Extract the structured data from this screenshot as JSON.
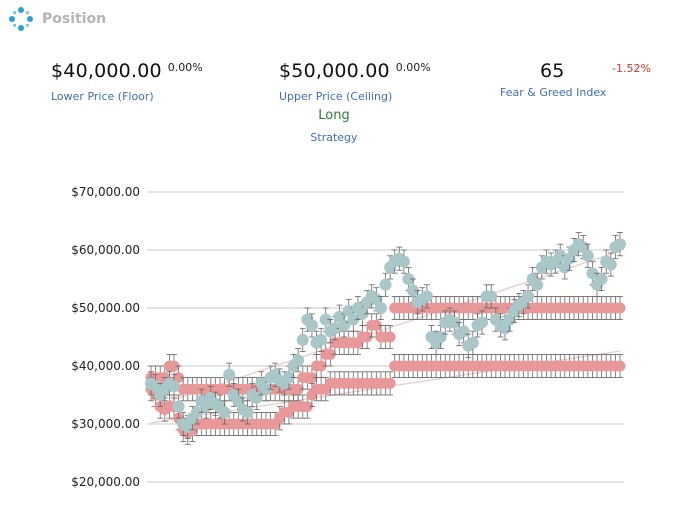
{
  "header": {
    "title": "Position",
    "icon": "dots-ring-icon"
  },
  "stats": {
    "floor": {
      "value": "$40,000.00",
      "change": "0.00%",
      "label": "Lower Price (Floor)"
    },
    "ceiling": {
      "value": "$50,000.00",
      "change": "0.00%",
      "label": "Upper Price (Ceiling)"
    },
    "fear_greed": {
      "value": "65",
      "change": "-1.52%",
      "label": "Fear & Greed Index"
    }
  },
  "strategy": {
    "value": "Long",
    "label": "Strategy"
  },
  "colors": {
    "price": "#a9c6c8",
    "band": "#e89898",
    "error": "#666666",
    "trend": "#e9c9c9",
    "grid": "#cccccc",
    "positive": "#2e7d32",
    "negative": "#d0342c",
    "link": "#3f6fb3"
  },
  "chart_data": {
    "type": "scatter",
    "title": "",
    "xlabel": "",
    "ylabel": "",
    "ylim": [
      20000,
      70000
    ],
    "y_ticks": [
      "$70,000.00",
      "$60,000.00",
      "$50,000.00",
      "$40,000.00",
      "$30,000.00",
      "$20,000.00"
    ],
    "y_tick_values": [
      70000,
      60000,
      50000,
      40000,
      30000,
      20000
    ],
    "grid": true,
    "error_bar": 2000,
    "series": [
      {
        "role": "upper_band",
        "values": [
          38000,
          38000,
          38000,
          38000,
          40000,
          40000,
          38000,
          36000,
          36000,
          36000,
          36000,
          36000,
          36000,
          36000,
          36000,
          36000,
          36000,
          36000,
          36000,
          36000,
          36000,
          36000,
          36000,
          36000,
          36000,
          36000,
          36000,
          36000,
          36000,
          36000,
          36000,
          36000,
          36000,
          38000,
          38000,
          38000,
          40000,
          40000,
          42000,
          42000,
          44000,
          44000,
          44000,
          44000,
          44000,
          44000,
          45000,
          45000,
          47000,
          47000,
          45000,
          45000,
          45000,
          50000,
          50000,
          50000,
          50000,
          50000,
          50000,
          50000,
          50000,
          50000,
          50000,
          50000,
          50000,
          50000,
          50000,
          50000,
          50000,
          50000,
          50000,
          50000,
          50000,
          50000,
          50000,
          50000,
          50000,
          50000,
          50000,
          50000,
          50000,
          50000,
          50000,
          50000,
          50000,
          50000,
          50000,
          50000,
          50000,
          50000,
          50000,
          50000,
          50000,
          50000,
          50000,
          50000,
          50000,
          50000,
          50000,
          50000,
          50000,
          50000,
          50000
        ]
      },
      {
        "role": "lower_band",
        "values": [
          36000,
          35000,
          33000,
          32500,
          33000,
          33000,
          31000,
          29000,
          28500,
          29000,
          30000,
          30000,
          30000,
          30000,
          30000,
          30000,
          30000,
          30000,
          30000,
          30000,
          30000,
          30000,
          30000,
          30000,
          30000,
          30000,
          30000,
          30000,
          31000,
          32000,
          32000,
          33000,
          33000,
          33000,
          33000,
          35000,
          36000,
          36000,
          36000,
          37000,
          37000,
          37000,
          37000,
          37000,
          37000,
          37000,
          37000,
          37000,
          37000,
          37000,
          37000,
          37000,
          37000,
          40000,
          40000,
          40000,
          40000,
          40000,
          40000,
          40000,
          40000,
          40000,
          40000,
          40000,
          40000,
          40000,
          40000,
          40000,
          40000,
          40000,
          40000,
          40000,
          40000,
          40000,
          40000,
          40000,
          40000,
          40000,
          40000,
          40000,
          40000,
          40000,
          40000,
          40000,
          40000,
          40000,
          40000,
          40000,
          40000,
          40000,
          40000,
          40000,
          40000,
          40000,
          40000,
          40000,
          40000,
          40000,
          40000,
          40000,
          40000,
          40000,
          40000
        ]
      },
      {
        "role": "price",
        "values": [
          37000,
          36500,
          35000,
          36000,
          37000,
          36500,
          33000,
          30000,
          29500,
          31000,
          32000,
          34000,
          33000,
          34500,
          33500,
          33000,
          32000,
          38500,
          35000,
          34000,
          32500,
          32000,
          35000,
          34500,
          37000,
          36000,
          38000,
          38500,
          37500,
          37000,
          38000,
          40000,
          41000,
          44500,
          48000,
          47000,
          44000,
          44500,
          48000,
          46000,
          46500,
          48500,
          47000,
          49500,
          48000,
          50000,
          49000,
          51000,
          52000,
          51500,
          50000,
          54000,
          57000,
          58000,
          58500,
          58000,
          55000,
          53000,
          51000,
          51500,
          52000,
          45000,
          44000,
          45000,
          47500,
          48000,
          47500,
          45500,
          46000,
          43500,
          44000,
          47000,
          47500,
          52000,
          52000,
          48000,
          47000,
          46500,
          48000,
          49500,
          50500,
          51000,
          52000,
          55000,
          54000,
          57000,
          58000,
          57500,
          58000,
          59000,
          57000,
          58500,
          60000,
          61000,
          60500,
          59000,
          56000,
          54000,
          55000,
          58000,
          57500,
          60500,
          61000
        ]
      }
    ]
  }
}
